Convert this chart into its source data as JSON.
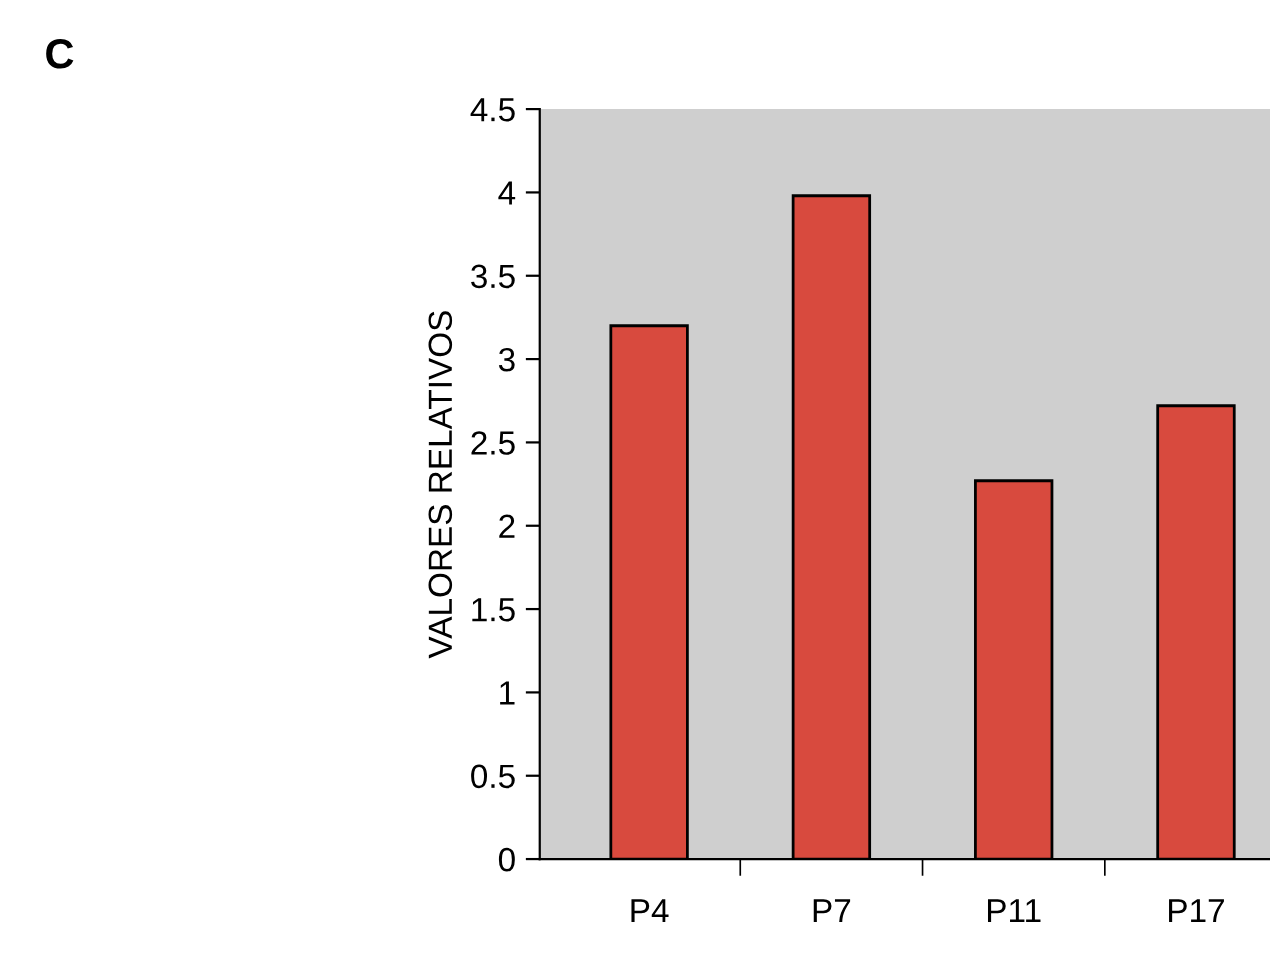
{
  "chart_data": {
    "type": "bar",
    "title": "C",
    "ylabel": "VALORES RELATIVOS",
    "categories": [
      "P4",
      "P7",
      "P11",
      "P17"
    ],
    "values": [
      3.2,
      3.98,
      2.27,
      2.72
    ],
    "color": "#d84a3e",
    "ylim": [
      0,
      4.5
    ],
    "yticks": [
      0,
      0.5,
      1,
      1.5,
      2,
      2.5,
      3,
      3.5,
      4,
      4.5
    ]
  }
}
